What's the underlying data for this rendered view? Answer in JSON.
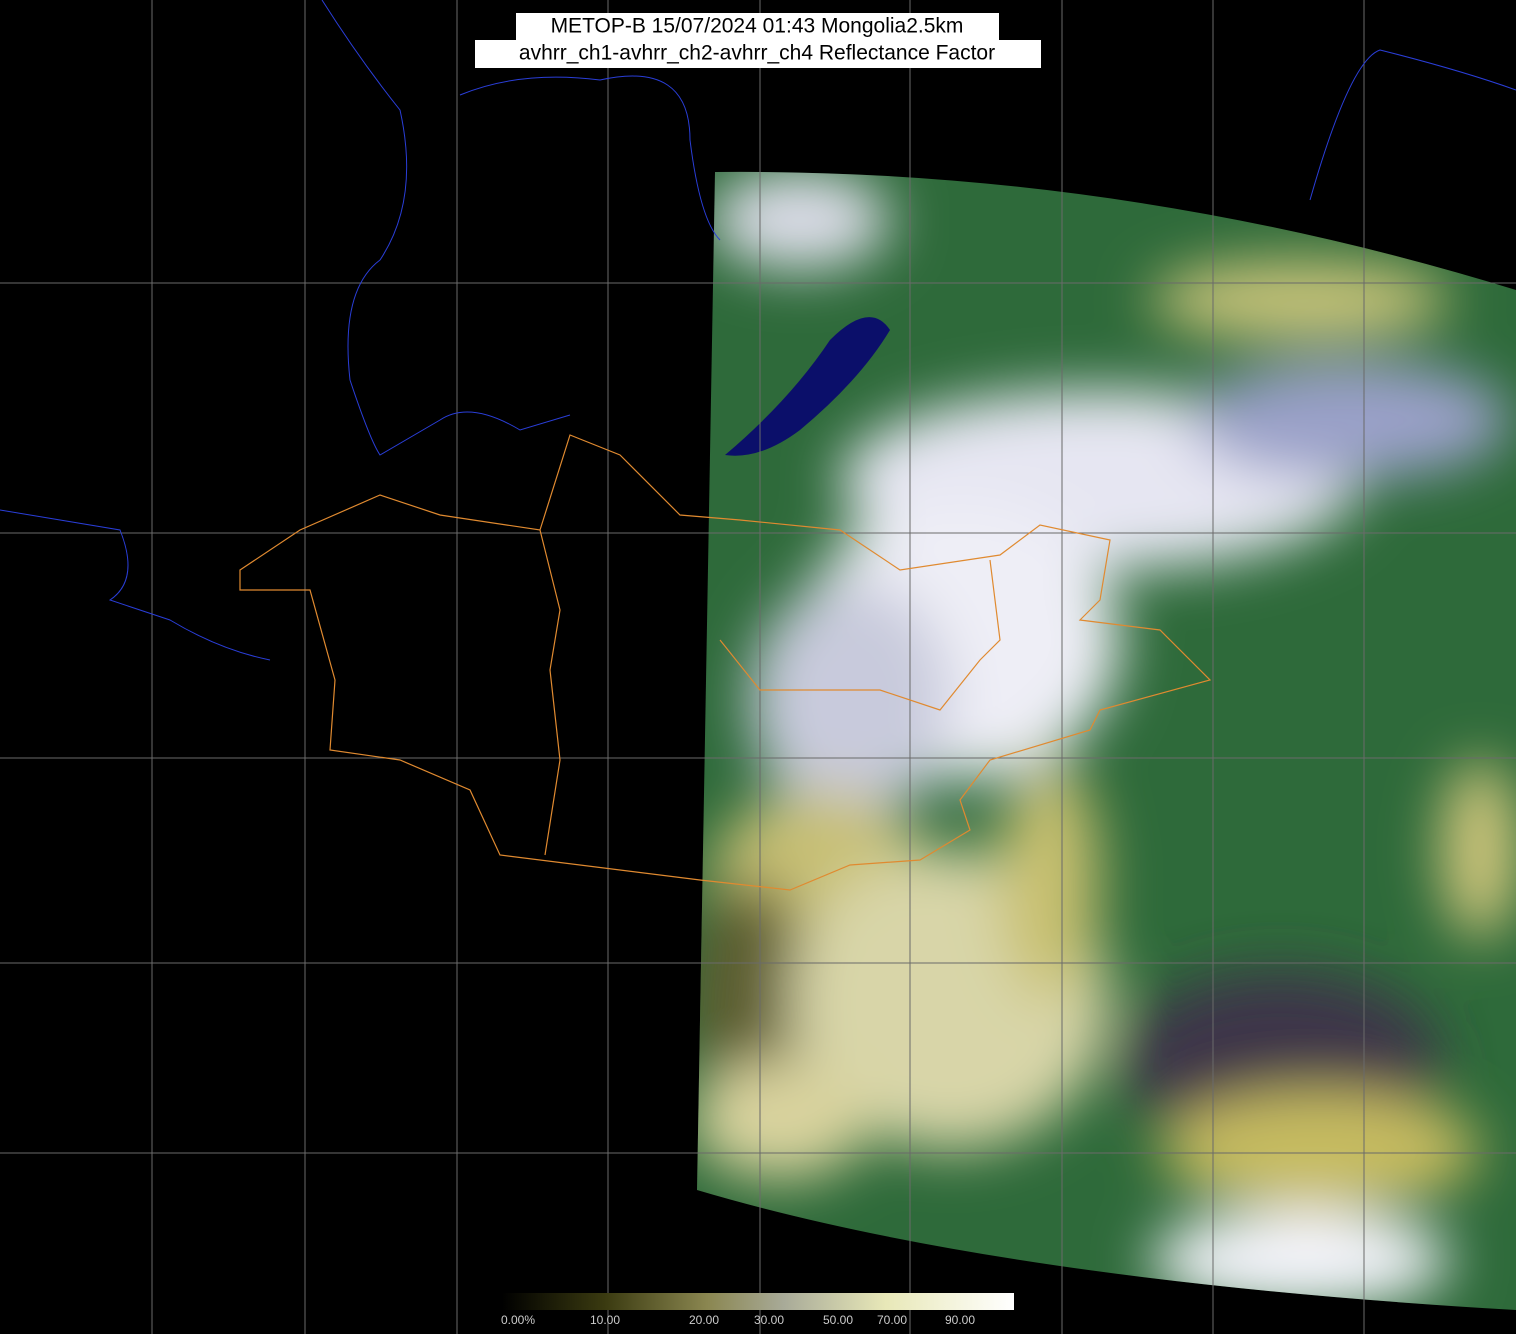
{
  "header": {
    "title": "METOP-B 15/07/2024 01:43 Mongolia2.5km",
    "subtitle": "avhrr_ch1-avhrr_ch2-avhrr_ch4 Reflectance Factor"
  },
  "colorbar": {
    "labels": [
      "0.00%",
      "10.00",
      "20.00",
      "30.00",
      "50.00",
      "70.00",
      "90.00"
    ]
  }
}
